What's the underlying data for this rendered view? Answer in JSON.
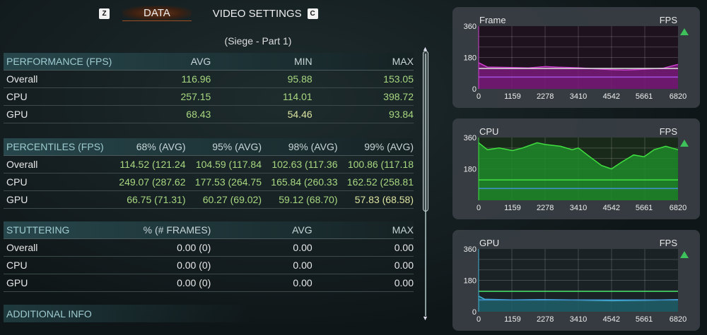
{
  "tabs": {
    "left_key": "Z",
    "active": "DATA",
    "other": "VIDEO SETTINGS",
    "right_key": "C"
  },
  "subtitle": "(Siege - Part 1)",
  "performance": {
    "header": [
      "PERFORMANCE (FPS)",
      "AVG",
      "MIN",
      "MAX"
    ],
    "rows": [
      {
        "label": "Overall",
        "values": [
          "116.96",
          "95.88",
          "153.05"
        ]
      },
      {
        "label": "CPU",
        "values": [
          "257.15",
          "114.01",
          "398.72"
        ]
      },
      {
        "label": "GPU",
        "values": [
          "68.43",
          "54.46",
          "93.84"
        ]
      }
    ]
  },
  "percentiles": {
    "header": [
      "PERCENTILES (FPS)",
      "68% (AVG)",
      "95% (AVG)",
      "98% (AVG)",
      "99% (AVG)"
    ],
    "rows": [
      {
        "label": "Overall",
        "values": [
          "114.52 (121.24",
          "104.59 (117.84",
          "102.63 (117.36",
          "100.86 (117.18"
        ]
      },
      {
        "label": "CPU",
        "values": [
          "249.07 (287.62",
          "177.53 (264.75",
          "165.84 (260.33",
          "162.52 (258.81"
        ]
      },
      {
        "label": "GPU",
        "values": [
          "66.75 (71.31)",
          "60.27 (69.02)",
          "59.12 (68.70)",
          "57.83 (68.58)"
        ]
      }
    ]
  },
  "stuttering": {
    "header": [
      "STUTTERING",
      "% (# FRAMES)",
      "AVG",
      "MAX"
    ],
    "rows": [
      {
        "label": "Overall",
        "values": [
          "0.00 (0)",
          "0.00",
          "0.00"
        ]
      },
      {
        "label": "CPU",
        "values": [
          "0.00 (0)",
          "0.00",
          "0.00"
        ]
      },
      {
        "label": "GPU",
        "values": [
          "0.00 (0)",
          "0.00",
          "0.00"
        ]
      }
    ]
  },
  "additional_info": "ADDITIONAL INFO",
  "chart_data": [
    {
      "type": "area",
      "title": "Frame",
      "unit": "FPS",
      "ylim": [
        0,
        360
      ],
      "yticks": [
        "0",
        "180",
        "360"
      ],
      "xticks": [
        "0",
        "1159",
        "2278",
        "3410",
        "4542",
        "5661",
        "6820"
      ],
      "colors": {
        "fill": "#7a1a7a",
        "line": "#d040d0",
        "ref1": "#dddddd",
        "ref2": "#a050e0"
      },
      "ref_lines": [
        117,
        68
      ],
      "series": [
        [
          0,
          150
        ],
        [
          300,
          125
        ],
        [
          1159,
          122
        ],
        [
          1700,
          120
        ],
        [
          2300,
          128
        ],
        [
          2700,
          124
        ],
        [
          3410,
          121
        ],
        [
          4000,
          115
        ],
        [
          4542,
          110
        ],
        [
          5000,
          108
        ],
        [
          5661,
          113
        ],
        [
          6300,
          118
        ],
        [
          6820,
          140
        ]
      ]
    },
    {
      "type": "area",
      "title": "CPU",
      "unit": "FPS",
      "ylim": [
        0,
        360
      ],
      "yticks": [
        "180",
        "360"
      ],
      "xticks": [
        "0",
        "1159",
        "2278",
        "3410",
        "4542",
        "5661",
        "6820"
      ],
      "colors": {
        "fill": "#1f8a2a",
        "line": "#40e040",
        "ref1": "#40e040",
        "ref2": "#4090d0"
      },
      "ref_lines": [
        117,
        68
      ],
      "series": [
        [
          0,
          330
        ],
        [
          300,
          290
        ],
        [
          700,
          300
        ],
        [
          1159,
          285
        ],
        [
          1500,
          300
        ],
        [
          2000,
          330
        ],
        [
          2278,
          320
        ],
        [
          2800,
          310
        ],
        [
          3200,
          290
        ],
        [
          3410,
          300
        ],
        [
          3800,
          250
        ],
        [
          4200,
          200
        ],
        [
          4542,
          180
        ],
        [
          4900,
          220
        ],
        [
          5300,
          260
        ],
        [
          5661,
          250
        ],
        [
          6000,
          290
        ],
        [
          6400,
          310
        ],
        [
          6820,
          290
        ]
      ]
    },
    {
      "type": "area",
      "title": "GPU",
      "unit": "FPS",
      "ylim": [
        0,
        360
      ],
      "yticks": [
        "0",
        "180",
        "360"
      ],
      "xticks": [
        "0",
        "1159",
        "2278",
        "3410",
        "4542",
        "5661",
        "6820"
      ],
      "colors": {
        "fill": "#1f5f6a",
        "line": "#40b0d0",
        "ref1": "#40e060",
        "ref2": "#4090d0"
      },
      "ref_lines": [
        117,
        68
      ],
      "series": [
        [
          0,
          90
        ],
        [
          200,
          72
        ],
        [
          1159,
          68
        ],
        [
          2278,
          70
        ],
        [
          3410,
          67
        ],
        [
          4542,
          63
        ],
        [
          5661,
          66
        ],
        [
          6820,
          70
        ]
      ]
    }
  ]
}
